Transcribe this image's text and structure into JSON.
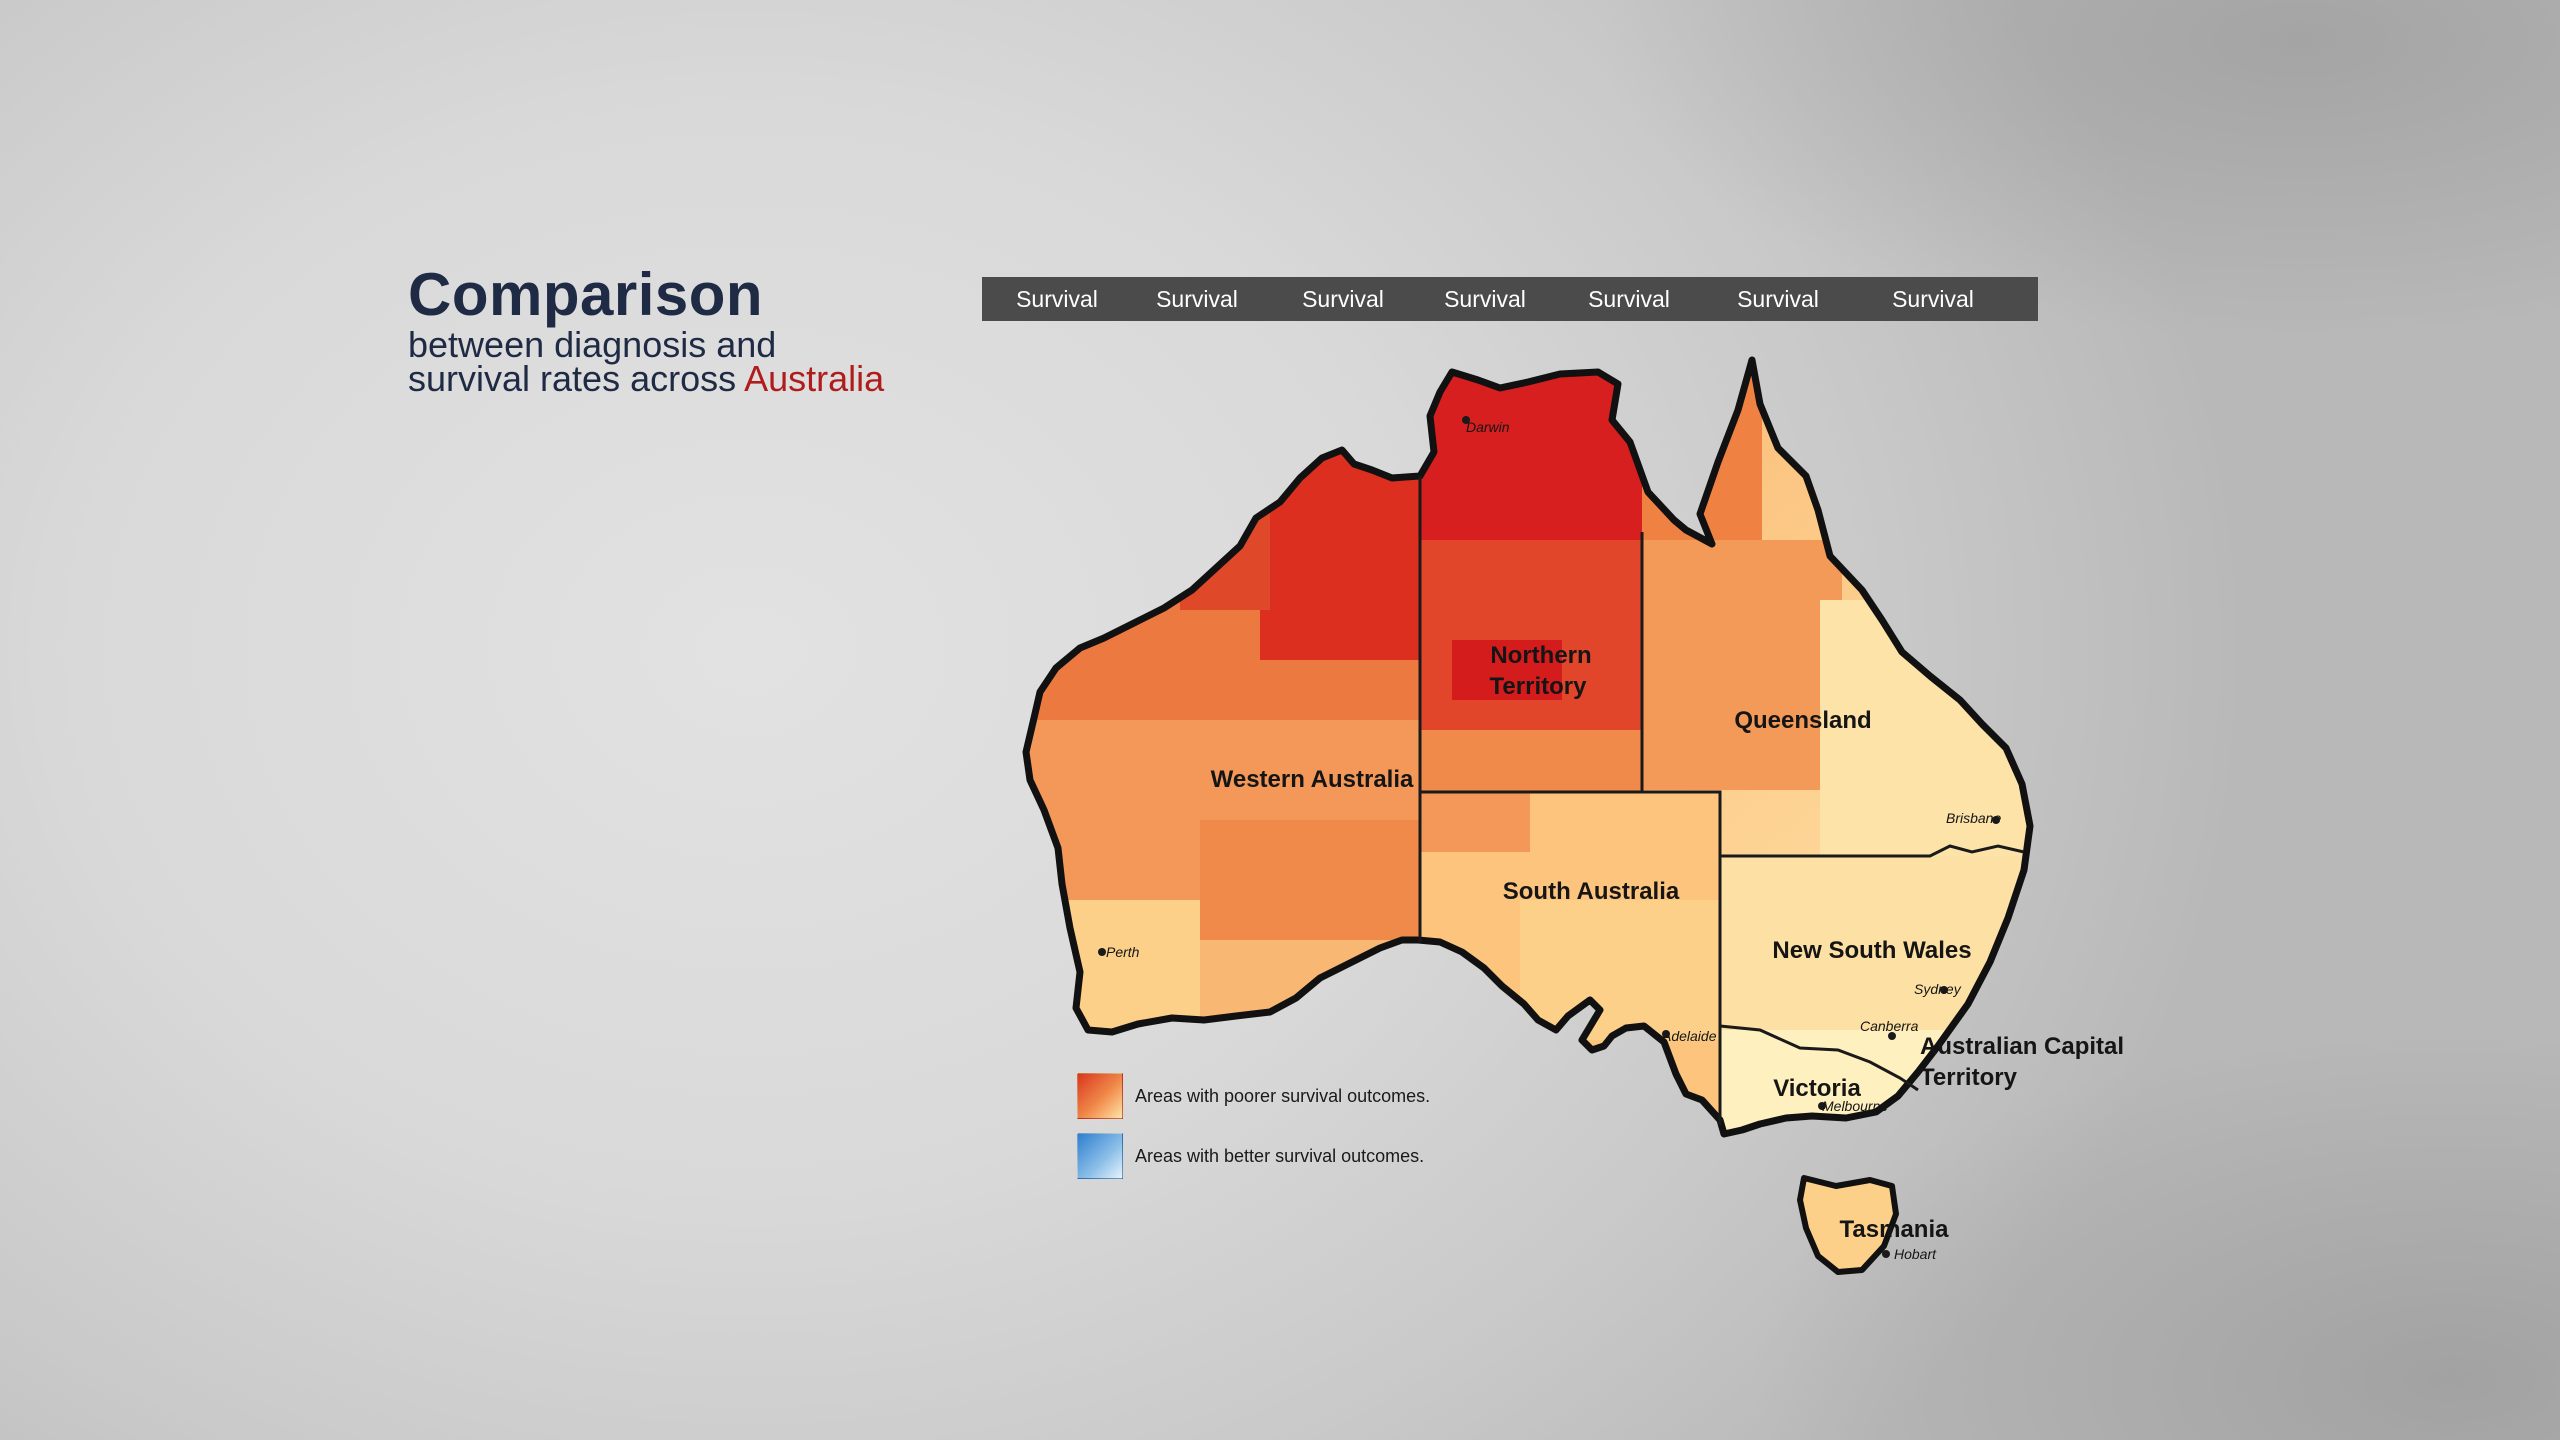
{
  "title": {
    "main": "Comparison",
    "line1": "between diagnosis and",
    "line2_prefix": "survival rates across ",
    "line2_accent": "Australia"
  },
  "tabs": [
    {
      "label": "Survival"
    },
    {
      "label": "Survival"
    },
    {
      "label": "Survival"
    },
    {
      "label": "Survival"
    },
    {
      "label": "Survival"
    },
    {
      "label": "Survival"
    },
    {
      "label": "Survival"
    }
  ],
  "map": {
    "regions": {
      "wa": "Western Australia",
      "nt_line1": "Northern",
      "nt_line2": "Territory",
      "qld": "Queensland",
      "sa": "South Australia",
      "nsw": "New South Wales",
      "act_line1": "Australian Capital",
      "act_line2": "Territory",
      "vic": "Victoria",
      "tas": "Tasmania"
    },
    "cities": {
      "darwin": "Darwin",
      "perth": "Perth",
      "brisbane": "Brisbane",
      "sydney": "Sydney",
      "canberra": "Canberra",
      "adelaide": "Adelaide",
      "melbourne": "Melbourne",
      "hobart": "Hobart"
    },
    "colors": {
      "poorest": "#d61f1f",
      "poor": "#e14a2a",
      "mid": "#ef8a4b",
      "fair": "#f7ad68",
      "good": "#fdd08a",
      "best": "#fff0c0",
      "outline": "#111111"
    }
  },
  "legend": {
    "poor": "Areas with poorer survival outcomes.",
    "better": "Areas with better survival outcomes."
  }
}
